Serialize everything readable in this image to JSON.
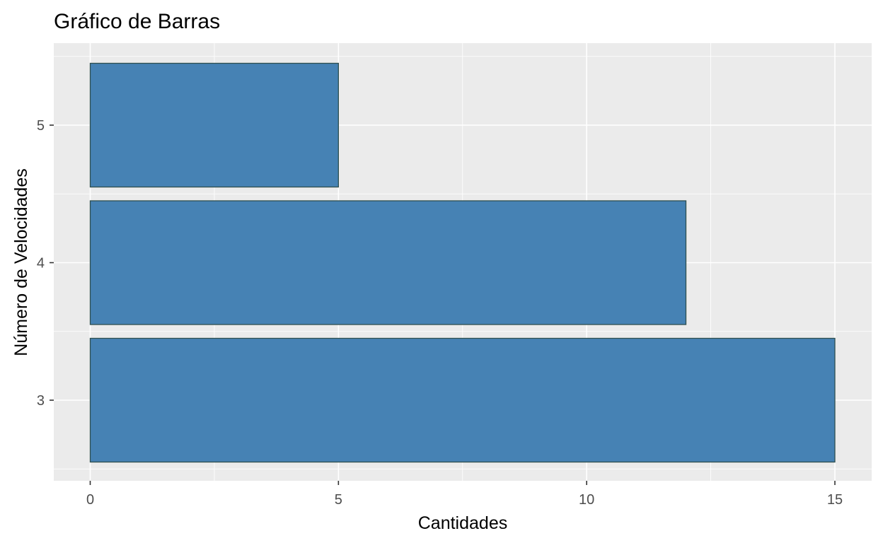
{
  "chart_data": {
    "type": "bar",
    "orientation": "horizontal",
    "title": "Gráfico de Barras",
    "xlabel": "Cantidades",
    "ylabel": "Número de Velocidades",
    "categories": [
      "3",
      "4",
      "5"
    ],
    "values": [
      15,
      12,
      5
    ],
    "xlim": [
      0,
      15
    ],
    "x_ticks": [
      0,
      5,
      10,
      15
    ],
    "bar_fill": "#4682B4",
    "bar_border": "#2F4F4F",
    "panel_background": "#EBEBEB",
    "grid": true,
    "legend": "none"
  }
}
